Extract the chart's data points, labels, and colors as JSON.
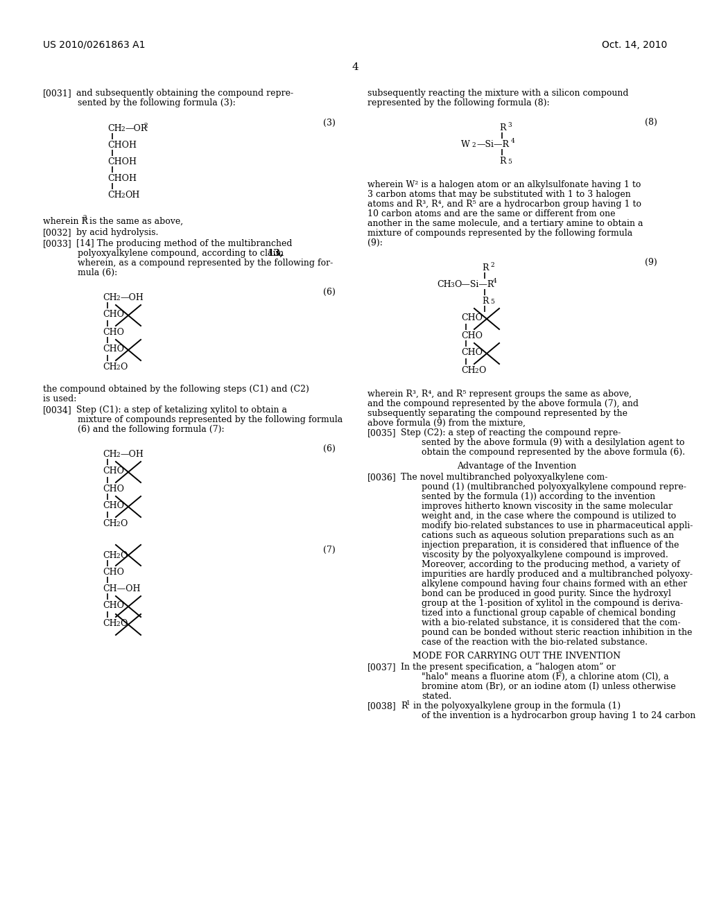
{
  "bg_color": "#ffffff",
  "header_left": "US 2010/0261863 A1",
  "header_right": "Oct. 14, 2010",
  "page_num": "4",
  "text_color": "#000000",
  "figsize": [
    10.24,
    13.2
  ],
  "dpi": 100
}
